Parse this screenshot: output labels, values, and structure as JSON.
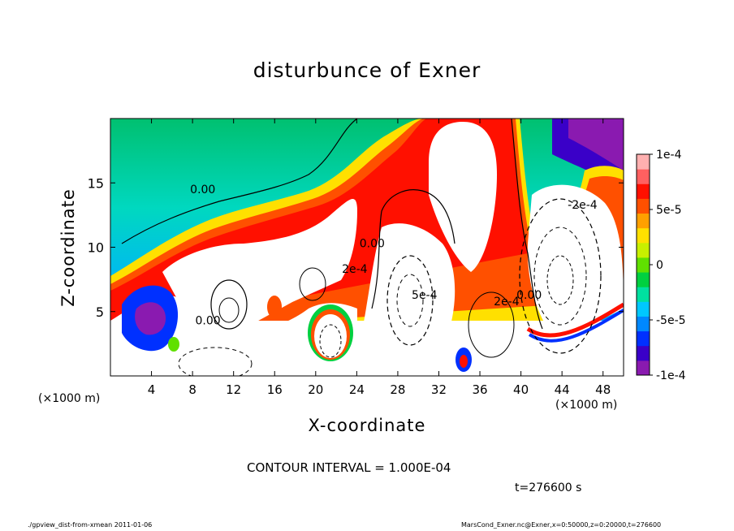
{
  "title": "disturbunce of Exner",
  "xlabel": "X-coordinate",
  "ylabel": "Z-coordinate",
  "x_unit_left": "(×1000 m)",
  "x_unit_right": "(×1000 m)",
  "contour_interval_text": "CONTOUR INTERVAL = 1.000E-04",
  "time_text": "t=276600 s",
  "footer_left": "./gpview_dist-from-xmean  2011-01-06",
  "footer_right": "MarsCond_Exner.nc@Exner,x=0:50000,z=0:20000,t=276600",
  "chart_data": {
    "type": "heatmap",
    "title": "disturbunce of Exner",
    "xlabel": "X-coordinate",
    "ylabel": "Z-coordinate",
    "xlim": [
      0,
      50
    ],
    "ylim": [
      0,
      20
    ],
    "x_ticks": [
      4,
      8,
      12,
      16,
      20,
      24,
      28,
      32,
      36,
      40,
      44,
      48
    ],
    "y_ticks": [
      5,
      10,
      15
    ],
    "colorbar": {
      "range": [
        -0.0001,
        0.0001
      ],
      "tick_values": [
        0.0001,
        5e-05,
        0,
        -5e-05,
        -0.0001
      ],
      "tick_labels": [
        "1e-4",
        "5e-5",
        "0",
        "-5e-5",
        "-1e-4"
      ],
      "colors": [
        "#8a1ab0",
        "#3a00c8",
        "#0030ff",
        "#0088ff",
        "#00c8ff",
        "#00e0a0",
        "#00d040",
        "#60e000",
        "#c8f000",
        "#ffe000",
        "#ffa000",
        "#ff5000",
        "#ff1000",
        "#ff6060",
        "#ffb0b0"
      ]
    },
    "contour_labels": [
      {
        "text": "0.00",
        "x": 9,
        "z": 14.2
      },
      {
        "text": "0.00",
        "x": 25.5,
        "z": 10
      },
      {
        "text": "-2e-4",
        "x": 46,
        "z": 13
      },
      {
        "text": "2e-4",
        "x": 23.8,
        "z": 8
      },
      {
        "text": "5e-4",
        "x": 30.6,
        "z": 6
      },
      {
        "text": "2e-4",
        "x": 38.6,
        "z": 5.5
      },
      {
        "text": "0.00",
        "x": 40.8,
        "z": 6
      },
      {
        "text": "0.00",
        "x": 9.5,
        "z": 4
      }
    ],
    "features": [
      {
        "sign": "positive",
        "x": 11,
        "z": 5
      },
      {
        "sign": "positive",
        "x": 19.5,
        "z": 3
      },
      {
        "sign": "positive",
        "x": 27,
        "z": 6
      },
      {
        "sign": "positive",
        "x": 32,
        "z": 15
      },
      {
        "sign": "negative",
        "x": 4.5,
        "z": 4
      },
      {
        "sign": "negative",
        "x": 33.8,
        "z": 1
      },
      {
        "sign": "negative",
        "x": 47,
        "z": 18
      },
      {
        "sign": "negative",
        "x": 43.5,
        "z": 7
      }
    ]
  }
}
